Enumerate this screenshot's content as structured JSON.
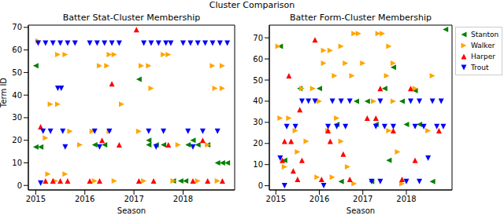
{
  "title": "Cluster Comparison",
  "chart_data": [
    {
      "type": "scatter",
      "title": "Batter Stat-Cluster Membership",
      "x_label": "Season",
      "y_label": "Term ID",
      "xlim": [
        2014.85,
        2019.05
      ],
      "xticks": [
        2015,
        2016,
        2017,
        2018
      ],
      "ylim": [
        -2,
        71
      ],
      "yticks": [
        0,
        10,
        20,
        30,
        40,
        50,
        60,
        70
      ],
      "grid": false,
      "series": [
        {
          "name": "Stanton",
          "color": "#008000",
          "marker": "triangle-left",
          "x": [
            2016.2,
            2016.4,
            2017.3,
            2017.45,
            2017.6,
            2018.1,
            2018.3,
            2018.5,
            2017.3,
            2018.2,
            2018.7,
            2018.8,
            2018.9,
            2017.1,
            2015.0,
            2017.8,
            2017.95,
            2018.05,
            2015.0,
            2015.1
          ],
          "values": [
            18,
            18,
            18,
            18,
            18,
            18,
            18,
            18,
            20,
            20,
            10,
            10,
            10,
            47,
            53,
            2,
            2,
            2,
            17,
            17
          ]
        },
        {
          "name": "Walker",
          "color": "#ffa500",
          "marker": "triangle-right",
          "x": [
            2015.05,
            2015.45,
            2015.6,
            2016.5,
            2016.6,
            2017.6,
            2017.7,
            2016.3,
            2016.45,
            2017.15,
            2017.3,
            2018.6,
            2018.8,
            2017.35,
            2018.65,
            2018.8,
            2015.3,
            2015.45,
            2016.75,
            2015.7,
            2016.15,
            2016.5,
            2017.1,
            2015.2,
            2015.9,
            2017.9,
            2018.5,
            2015.25,
            2015.6,
            2015.4,
            2016.2,
            2016.6,
            2017.2,
            2017.8,
            2018.3,
            2018.7
          ],
          "values": [
            64,
            58,
            58,
            58,
            58,
            58,
            58,
            53,
            53,
            53,
            53,
            53,
            53,
            43,
            43,
            43,
            36,
            36,
            36,
            24,
            24,
            24,
            24,
            21,
            18,
            18,
            18,
            5,
            5,
            2,
            2,
            2,
            2,
            2,
            2,
            2
          ]
        },
        {
          "name": "Harper",
          "color": "#ff0000",
          "marker": "triangle-up",
          "x": [
            2017.05,
            2015.1,
            2015.2,
            2015.35,
            2015.5,
            2015.65,
            2016.1,
            2016.3,
            2017.1,
            2017.4,
            2018.2,
            2018.5,
            2018.8,
            2016.7,
            2017.7,
            2016.35,
            2018.4,
            2016.55
          ],
          "values": [
            69,
            26,
            2,
            2,
            2,
            2,
            2,
            2,
            2,
            2,
            2,
            2,
            2,
            18,
            18,
            20,
            20,
            45
          ]
        },
        {
          "name": "Trout",
          "color": "#0000ff",
          "marker": "triangle-down",
          "x": [
            2015.05,
            2015.2,
            2015.35,
            2015.5,
            2015.65,
            2015.8,
            2016.1,
            2016.25,
            2016.4,
            2016.55,
            2016.7,
            2017.2,
            2017.35,
            2017.5,
            2017.65,
            2017.75,
            2018.0,
            2018.15,
            2018.3,
            2018.45,
            2018.6,
            2018.75,
            2018.9,
            2015.15,
            2015.3,
            2015.55,
            2016.2,
            2016.5,
            2017.3,
            2017.6,
            2018.1,
            2018.4,
            2018.7,
            2015.6,
            2016.3,
            2017.45,
            2018.2,
            2015.45,
            2015.52,
            2015.1
          ],
          "values": [
            63,
            63,
            63,
            63,
            63,
            63,
            63,
            63,
            63,
            63,
            63,
            63,
            63,
            63,
            63,
            63,
            63,
            63,
            63,
            63,
            63,
            63,
            63,
            24,
            24,
            24,
            24,
            24,
            24,
            24,
            24,
            24,
            24,
            17,
            17,
            17,
            17,
            43,
            43,
            1
          ]
        }
      ]
    },
    {
      "type": "scatter",
      "title": "Batter Form-Cluster Membership",
      "x_label": "Season",
      "xlim": [
        2014.85,
        2019.05
      ],
      "xticks": [
        2015,
        2016,
        2017,
        2018
      ],
      "ylim": [
        -2,
        76
      ],
      "yticks": [
        0,
        10,
        20,
        30,
        40,
        50,
        60,
        70
      ],
      "grid": false,
      "legend": "right",
      "series": [
        {
          "name": "Stanton",
          "color": "#008000",
          "marker": "triangle-left",
          "x": [
            2018.9,
            2015.1,
            2017.7,
            2015.55,
            2016.0,
            2017.5,
            2016.85,
            2017.1,
            2017.9,
            2016.4,
            2017.3,
            2018.0,
            2018.3,
            2015.2,
            2017.6,
            2016.5,
            2017.2,
            2018.6,
            2018.2
          ],
          "values": [
            74,
            66,
            56,
            46,
            46,
            46,
            40,
            40,
            40,
            29,
            29,
            29,
            29,
            12,
            12,
            2,
            2,
            2,
            45
          ]
        },
        {
          "name": "Walker",
          "color": "#ffa500",
          "marker": "triangle-right",
          "x": [
            2016.8,
            2016.9,
            2017.35,
            2017.45,
            2015.05,
            2016.5,
            2017.6,
            2016.1,
            2016.25,
            2016.1,
            2016.6,
            2017.0,
            2017.7,
            2016.35,
            2016.75,
            2017.55,
            2018.6,
            2015.6,
            2015.85,
            2018.2,
            2016.0,
            2017.25,
            2017.7,
            2015.1,
            2015.3,
            2016.4,
            2015.45,
            2016.2,
            2017.6,
            2018.5,
            2015.7,
            2016.5,
            2015.5,
            2017.8,
            2015.2,
            2016.65,
            2015.95,
            2016.3,
            2016.8,
            2017.9
          ],
          "values": [
            72,
            72,
            72,
            72,
            66,
            66,
            66,
            64,
            64,
            58,
            58,
            58,
            58,
            52,
            52,
            52,
            52,
            46,
            46,
            46,
            40,
            40,
            40,
            32,
            32,
            32,
            26,
            26,
            26,
            26,
            21,
            21,
            16,
            16,
            9,
            9,
            4,
            4,
            1,
            1
          ]
        },
        {
          "name": "Harper",
          "color": "#ff0000",
          "marker": "triangle-up",
          "x": [
            2015.9,
            2015.3,
            2017.4,
            2018.1,
            2015.55,
            2017.1,
            2017.3,
            2016.2,
            2017.7,
            2018.75,
            2015.2,
            2015.35,
            2016.25,
            2016.55,
            2015.15,
            2015.6,
            2018.2,
            2015.4,
            2015.5,
            2016.05,
            2016.7,
            2017.9
          ],
          "values": [
            69,
            52,
            46,
            46,
            36,
            32,
            32,
            26,
            26,
            26,
            21,
            21,
            21,
            15,
            12,
            12,
            12,
            7,
            3,
            3,
            3,
            3
          ]
        },
        {
          "name": "Trout",
          "color": "#0000ff",
          "marker": "triangle-down",
          "x": [
            2015.6,
            2015.75,
            2015.9,
            2016.3,
            2016.5,
            2016.7,
            2017.4,
            2018.1,
            2018.3,
            2018.6,
            2018.8,
            2015.25,
            2015.45,
            2016.2,
            2016.4,
            2016.6,
            2017.3,
            2017.5,
            2017.7,
            2018.2,
            2018.4,
            2018.7,
            2018.85,
            2017.2,
            2017.4,
            2018.0,
            2018.3,
            2015.1,
            2018.5,
            2015.2,
            2016.1
          ],
          "values": [
            40,
            40,
            40,
            40,
            40,
            40,
            40,
            40,
            40,
            40,
            40,
            28,
            28,
            28,
            28,
            28,
            28,
            28,
            28,
            28,
            28,
            28,
            28,
            2,
            2,
            2,
            2,
            13,
            13,
            0,
            0
          ]
        }
      ]
    }
  ]
}
